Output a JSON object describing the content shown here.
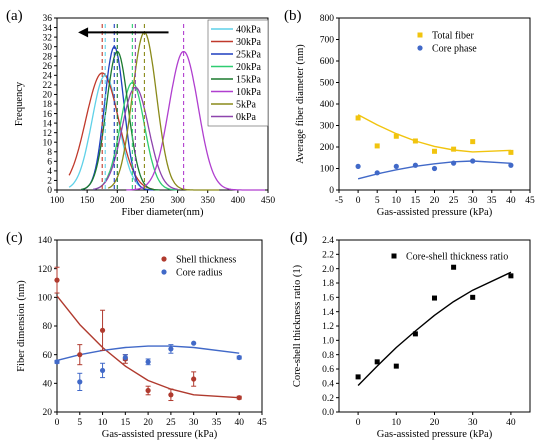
{
  "chart_data": [
    {
      "id": "a",
      "type": "line",
      "panel_label": "(a)",
      "xlabel": "Fiber diameter(nm)",
      "ylabel": "Frequency",
      "xlim": [
        100,
        450
      ],
      "ylim": [
        0,
        36
      ],
      "x_ticks": [
        "100",
        "150",
        "200",
        "250",
        "300",
        "350",
        "400",
        "450"
      ],
      "y_ticks": [
        "0",
        "2",
        "4",
        "6",
        "8",
        "10",
        "12",
        "14",
        "16",
        "18",
        "20",
        "22",
        "24",
        "26",
        "28",
        "30",
        "32",
        "34",
        "36"
      ],
      "legend_position": "right",
      "arrow": {
        "from_x": 285,
        "to_x": 135,
        "y": 33
      },
      "series": [
        {
          "name": "40kPa",
          "color": "#5fd1e8",
          "mean": 180,
          "sd": 22,
          "peak": 24,
          "range": [
            120,
            250
          ]
        },
        {
          "name": "30kPa",
          "color": "#c0392b",
          "mean": 175,
          "sd": 27,
          "peak": 24.5,
          "range": [
            120,
            260
          ]
        },
        {
          "name": "25kPa",
          "color": "#1f3fbf",
          "mean": 195,
          "sd": 16,
          "peak": 30,
          "range": [
            140,
            260
          ]
        },
        {
          "name": "20kPa",
          "color": "#2ecc71",
          "mean": 225,
          "sd": 20,
          "peak": 22.5,
          "range": [
            160,
            300
          ]
        },
        {
          "name": "15kPa",
          "color": "#1b7a2e",
          "mean": 200,
          "sd": 18,
          "peak": 29,
          "range": [
            140,
            270
          ]
        },
        {
          "name": "10kPa",
          "color": "#b03fcf",
          "mean": 310,
          "sd": 24,
          "peak": 29,
          "range": [
            215,
            445
          ]
        },
        {
          "name": "5kPa",
          "color": "#8a8a1a",
          "mean": 245,
          "sd": 20,
          "peak": 33,
          "range": [
            185,
            370
          ]
        },
        {
          "name": "0kPa",
          "color": "#8e44ad",
          "mean": 230,
          "sd": 22,
          "peak": 21.5,
          "range": [
            160,
            300
          ]
        }
      ],
      "mean_lines": [
        {
          "x": 175,
          "color": "#c0392b"
        },
        {
          "x": 180,
          "color": "#5fd1e8"
        },
        {
          "x": 195,
          "color": "#1f3fbf"
        },
        {
          "x": 200,
          "color": "#1b7a2e"
        },
        {
          "x": 225,
          "color": "#2ecc71"
        },
        {
          "x": 230,
          "color": "#8e44ad"
        },
        {
          "x": 245,
          "color": "#8a8a1a"
        },
        {
          "x": 310,
          "color": "#b03fcf"
        }
      ]
    },
    {
      "id": "b",
      "type": "scatter",
      "panel_label": "(b)",
      "xlabel": "Gas-assisted pressure (kPa)",
      "ylabel": "Average fiber diameter (nm)",
      "xlim": [
        -5,
        45
      ],
      "ylim": [
        0,
        800
      ],
      "x_ticks": [
        "-5",
        "0",
        "5",
        "10",
        "15",
        "20",
        "25",
        "30",
        "35",
        "40",
        "45"
      ],
      "y_ticks": [
        "0",
        "100",
        "200",
        "300",
        "400",
        "500",
        "600",
        "700",
        "800"
      ],
      "legend_position": "top-right",
      "series": [
        {
          "name": "Total fiber",
          "color": "#f1c40f",
          "marker": "square",
          "x": [
            0,
            5,
            10,
            15,
            20,
            25,
            30,
            40
          ],
          "y": [
            335,
            205,
            250,
            228,
            180,
            190,
            225,
            175
          ],
          "fit_y": [
            350,
            303,
            262,
            228,
            203,
            186,
            177,
            184
          ]
        },
        {
          "name": "Core phase",
          "color": "#4169c8",
          "marker": "circle",
          "x": [
            0,
            5,
            10,
            15,
            20,
            25,
            30,
            40
          ],
          "y": [
            110,
            80,
            110,
            115,
            100,
            125,
            135,
            115
          ],
          "fit_y": [
            52,
            75,
            94,
            110,
            122,
            131,
            135,
            124
          ]
        }
      ]
    },
    {
      "id": "c",
      "type": "scatter",
      "panel_label": "(c)",
      "xlabel": "Gas-assisted pressure (kPa)",
      "ylabel": "Fiber dimension (nm)",
      "xlim": [
        0,
        45
      ],
      "ylim": [
        20,
        140
      ],
      "x_ticks": [
        "0",
        "5",
        "10",
        "15",
        "20",
        "25",
        "30",
        "35",
        "40",
        "45"
      ],
      "y_ticks": [
        "20",
        "40",
        "60",
        "80",
        "100",
        "120",
        "140"
      ],
      "legend_position": "top-right",
      "series": [
        {
          "name": "Shell thickness",
          "color": "#b03a2e",
          "marker": "circle",
          "x": [
            0,
            5,
            10,
            15,
            20,
            25,
            30,
            40
          ],
          "y": [
            112,
            60,
            77,
            57,
            35,
            32,
            43,
            30
          ],
          "err": [
            9,
            7,
            14,
            3,
            3,
            4,
            5,
            1
          ],
          "fit_y": [
            101,
            81,
            65,
            52,
            42,
            36,
            32,
            30
          ]
        },
        {
          "name": "Core radius",
          "color": "#4169c8",
          "marker": "circle",
          "x": [
            0,
            5,
            10,
            15,
            20,
            25,
            30,
            40
          ],
          "y": [
            55,
            41,
            49,
            58,
            55,
            64,
            68,
            58
          ],
          "err": [
            1,
            6,
            5,
            2,
            2,
            3,
            0,
            1
          ],
          "fit_y": [
            56,
            60,
            63,
            65,
            66,
            66,
            65,
            61
          ]
        }
      ]
    },
    {
      "id": "d",
      "type": "scatter",
      "panel_label": "(d)",
      "xlabel": "Gas-assisted pressure (kPa)",
      "ylabel": "Core-shell thickness ratio (1)",
      "xlim": [
        -5,
        45
      ],
      "ylim": [
        0,
        2.4
      ],
      "x_ticks": [
        "0",
        "10",
        "20",
        "30",
        "40"
      ],
      "y_ticks": [
        "0.0",
        "0.2",
        "0.4",
        "0.6",
        "0.8",
        "1.0",
        "1.2",
        "1.4",
        "1.6",
        "1.8",
        "2.0",
        "2.2",
        "2.4"
      ],
      "legend_position": "top-right",
      "series": [
        {
          "name": "Core-shell thickness ratio",
          "color": "#000000",
          "marker": "square",
          "x": [
            0,
            5,
            10,
            15,
            20,
            25,
            30,
            40
          ],
          "y": [
            0.49,
            0.7,
            0.64,
            1.09,
            1.59,
            2.02,
            1.6,
            1.9
          ],
          "fit_y": [
            0.37,
            0.64,
            0.9,
            1.13,
            1.35,
            1.54,
            1.7,
            1.95
          ]
        }
      ]
    }
  ]
}
